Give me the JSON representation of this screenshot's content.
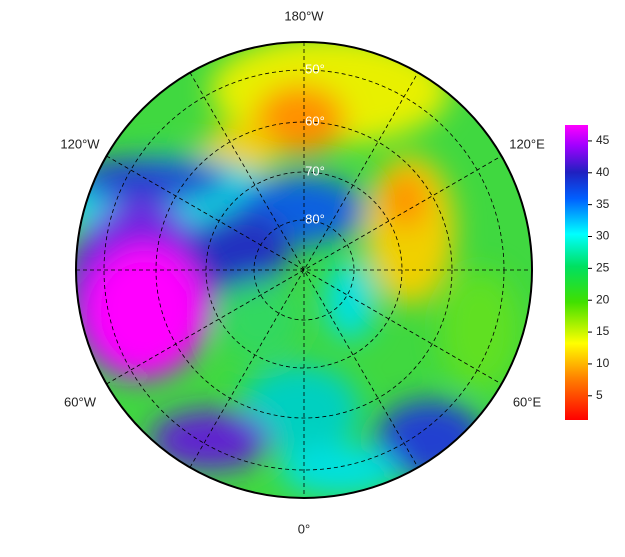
{
  "map": {
    "longitude_labels": [
      "180°W",
      "120°W",
      "120°E",
      "60°W",
      "60°E",
      "0°"
    ],
    "latitude_labels": [
      "50°",
      "60°",
      "70°",
      "80°"
    ]
  },
  "colorbar": {
    "range": [
      1.2,
      47.5
    ],
    "ticks": [
      5,
      10,
      15,
      20,
      25,
      30,
      35,
      40,
      45
    ]
  }
}
